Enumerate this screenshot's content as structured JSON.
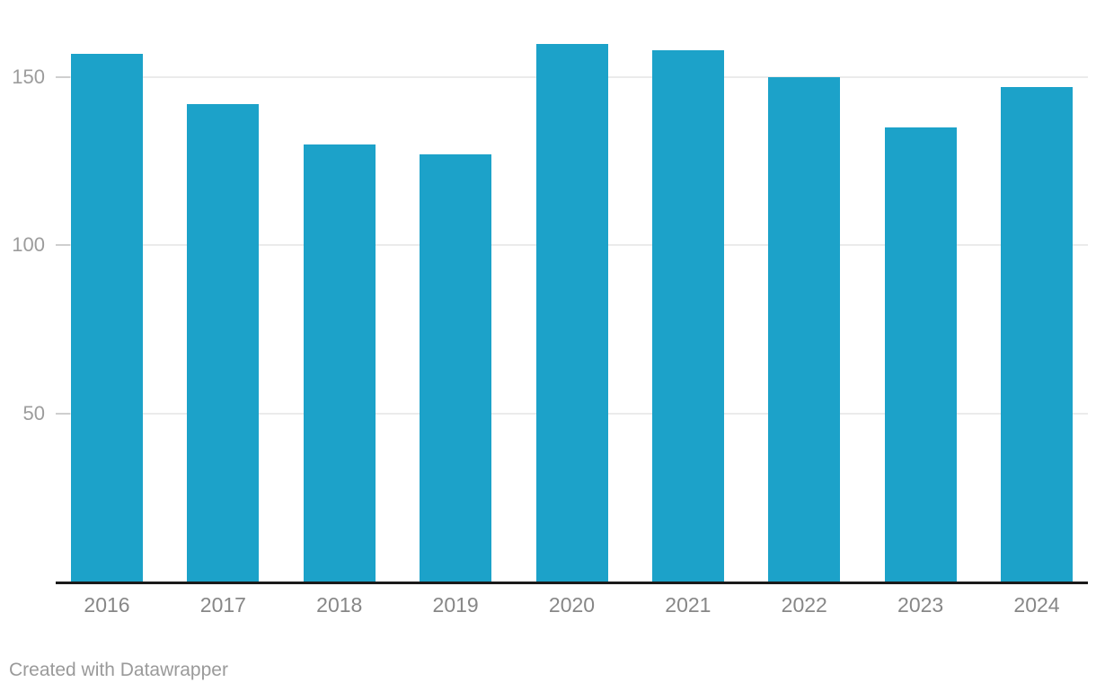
{
  "chart_data": {
    "type": "bar",
    "categories": [
      "2016",
      "2017",
      "2018",
      "2019",
      "2020",
      "2021",
      "2022",
      "2023",
      "2024"
    ],
    "values": [
      157,
      142,
      130,
      127,
      160,
      158,
      150,
      135,
      147
    ],
    "title": "",
    "xlabel": "",
    "ylabel": "",
    "ylim": [
      0,
      173
    ],
    "yticks": [
      50,
      100,
      150
    ],
    "ytick_labels": [
      "50",
      "100",
      "150"
    ],
    "grid": true,
    "legend": false,
    "bar_color": "#1ca2c9",
    "gridline_color": "#ebebeb",
    "tick_color": "#cfcfcf",
    "axis_line_color": "#1a1a1a",
    "ytick_text_color": "#9c9c9c",
    "xtick_text_color": "#878787"
  },
  "attribution": {
    "label": "Created with Datawrapper"
  }
}
